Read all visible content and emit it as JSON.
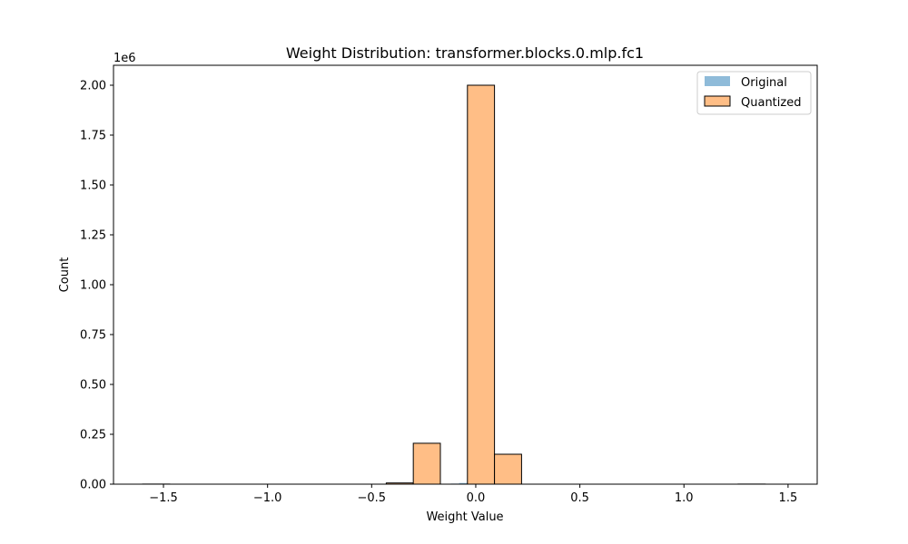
{
  "chart_data": {
    "type": "bar",
    "title": "Weight Distribution: transformer.blocks.0.mlp.fc1",
    "xlabel": "Weight Value",
    "ylabel": "Count",
    "y_offset_label": "1e6",
    "xlim": [
      -1.74,
      1.64
    ],
    "ylim": [
      0,
      2100000
    ],
    "x_ticks": [
      -1.5,
      -1.0,
      -0.5,
      0.0,
      0.5,
      1.0,
      1.5
    ],
    "x_tick_labels": [
      "−1.5",
      "−1.0",
      "−0.5",
      "0.0",
      "0.5",
      "1.0",
      "1.5"
    ],
    "y_ticks": [
      0,
      250000,
      500000,
      750000,
      1000000,
      1250000,
      1500000,
      1750000,
      2000000
    ],
    "y_tick_labels": [
      "0.00",
      "0.25",
      "0.50",
      "0.75",
      "1.00",
      "1.25",
      "1.50",
      "1.75",
      "2.00"
    ],
    "grid": false,
    "legend_position": "top-right",
    "series": [
      {
        "name": "Original",
        "color": "#1f77b4",
        "opacity": 0.5,
        "bin_edges": [
          -0.2,
          -0.16,
          -0.12,
          -0.08,
          -0.04,
          0.0,
          0.04,
          0.08,
          0.12,
          0.16,
          0.2
        ],
        "counts": [
          500,
          1500,
          3000,
          6000,
          11000,
          13000,
          8000,
          3000,
          1200,
          400
        ]
      },
      {
        "name": "Quantized",
        "color": "#ffbe86",
        "edgecolor": "#000000",
        "bin_edges": [
          -1.6,
          -1.47,
          -1.34,
          -1.21,
          -1.08,
          -0.95,
          -0.82,
          -0.69,
          -0.56,
          -0.43,
          -0.3,
          -0.17,
          -0.04,
          0.09,
          0.22,
          0.35,
          0.48,
          0.61,
          0.74,
          0.87,
          1.0,
          1.13,
          1.26,
          1.39
        ],
        "counts": [
          500,
          0,
          0,
          0,
          0,
          0,
          0,
          0,
          0,
          6000,
          205000,
          0,
          2000000,
          150000,
          0,
          0,
          0,
          0,
          0,
          0,
          0,
          0,
          500
        ]
      }
    ]
  }
}
